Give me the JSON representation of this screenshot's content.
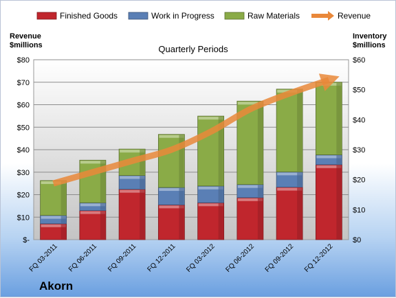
{
  "company": "Akorn",
  "chart_data": {
    "type": "bar",
    "stacked": true,
    "title": "Quarterly Periods",
    "ylabel_left": [
      "Revenue",
      "$millions"
    ],
    "ylabel_right": [
      "Inventory",
      "$millions"
    ],
    "categories": [
      "FQ 03-2011",
      "FQ 06-2011",
      "FQ 09-2011",
      "FQ 12-2011",
      "FQ 03-2012",
      "FQ 06-2012",
      "FQ 09-2012",
      "FQ 12-2012"
    ],
    "ylim_left": [
      0,
      80
    ],
    "ylim_right": [
      0,
      60
    ],
    "left_tick_labels": [
      "$-",
      "$10",
      "$20",
      "$30",
      "$40",
      "$50",
      "$60",
      "$70",
      "$80"
    ],
    "right_tick_labels": [
      "$0",
      "$10",
      "$20",
      "$30",
      "$40",
      "$50",
      "$60"
    ],
    "legend_position": "top",
    "grid": true,
    "series": [
      {
        "name": "Finished Goods",
        "axis": "right",
        "color": "#c0262d",
        "values": [
          5.3,
          9.7,
          16.8,
          11.6,
          12.3,
          14.0,
          17.5,
          25.0
        ]
      },
      {
        "name": "Work in Progress",
        "axis": "right",
        "color": "#5a7fb5",
        "values": [
          2.8,
          2.6,
          4.6,
          5.8,
          5.6,
          4.4,
          5.1,
          3.3
        ]
      },
      {
        "name": "Raw Materials",
        "axis": "right",
        "color": "#8aab47",
        "values": [
          11.6,
          14.2,
          8.8,
          17.7,
          23.3,
          27.8,
          27.6,
          24.2
        ]
      },
      {
        "name": "Revenue",
        "axis": "left",
        "type": "line",
        "color": "#e9883a",
        "values": [
          25,
          30,
          35,
          40,
          48,
          58,
          65,
          71
        ]
      }
    ]
  }
}
